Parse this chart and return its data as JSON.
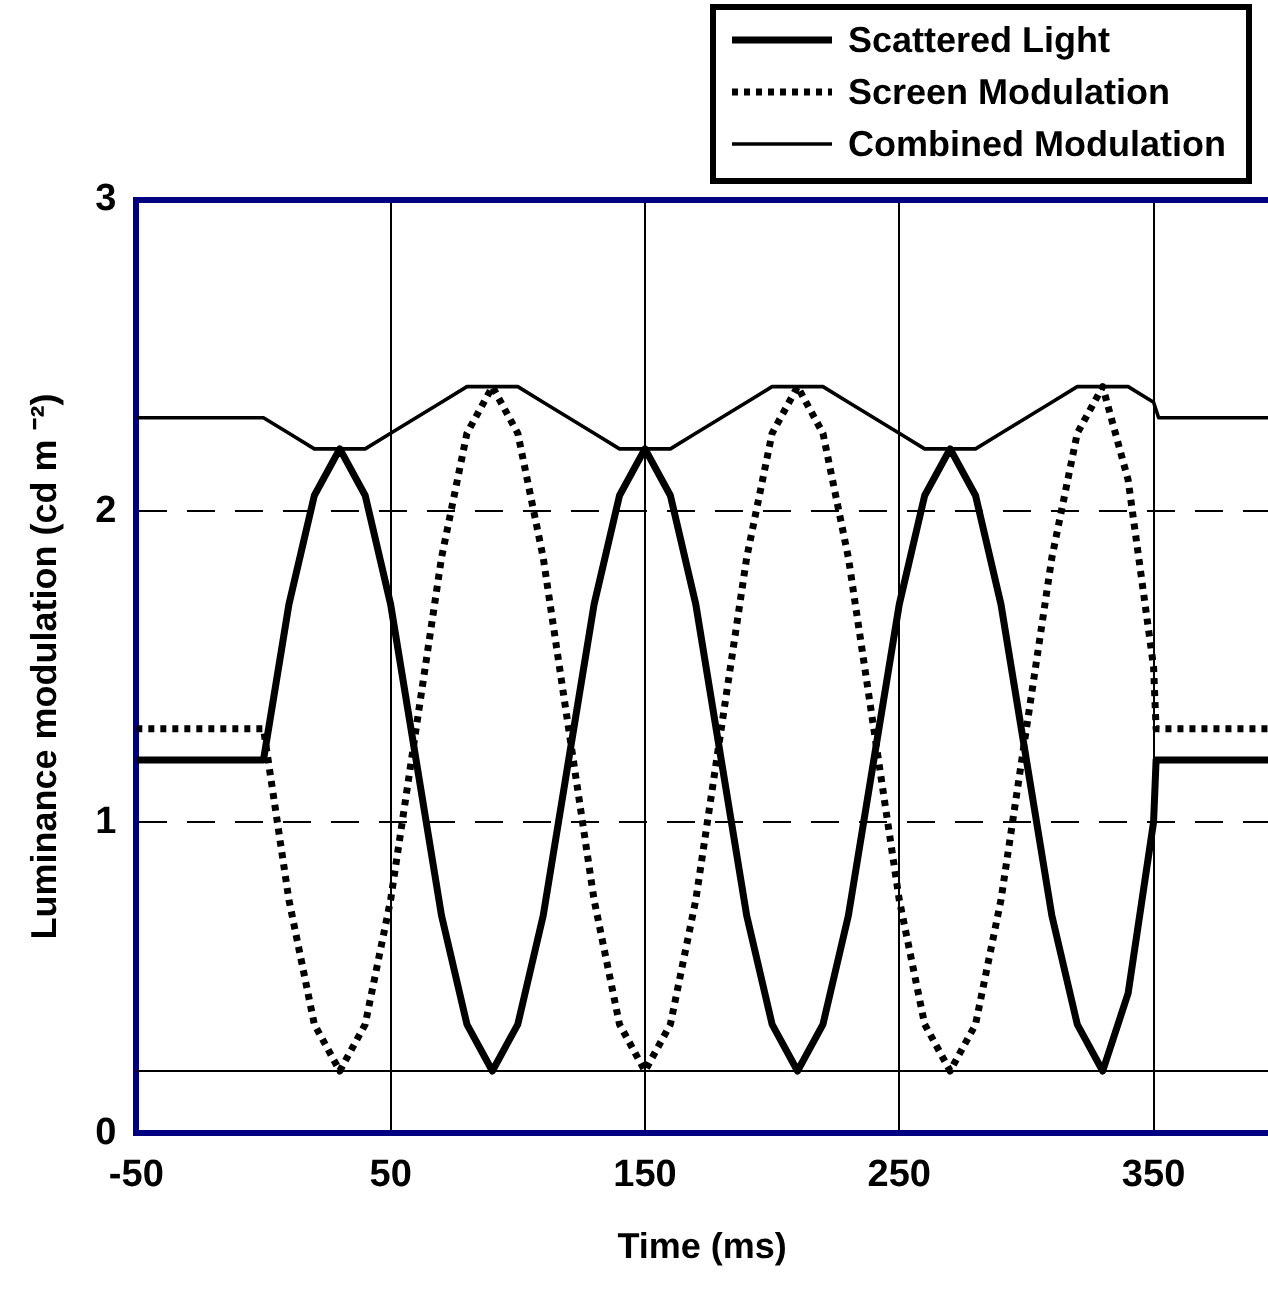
{
  "chart_data": {
    "type": "line",
    "xlabel": "Time (ms)",
    "ylabel": "Luminance modulation (cd m ⁻²)",
    "xlim": [
      -50,
      395
    ],
    "xticks": [
      -50,
      50,
      150,
      250,
      350
    ],
    "ylim": [
      0,
      3
    ],
    "yticks": [
      0,
      1,
      2,
      3
    ],
    "grid": true,
    "legend": "top right",
    "marker": "none",
    "ref_lines": [
      {
        "axis": "y",
        "value": 0.2
      }
    ],
    "series": [
      {
        "name": "Scattered Light",
        "color": "#000000",
        "line_style": "solid",
        "x": [
          -50,
          0,
          10,
          20,
          30,
          40,
          50,
          60,
          70,
          80,
          90,
          100,
          110,
          120,
          130,
          140,
          150,
          160,
          170,
          180,
          190,
          200,
          210,
          220,
          230,
          240,
          250,
          260,
          270,
          280,
          290,
          300,
          310,
          320,
          330,
          340,
          350,
          351,
          395
        ],
        "values": [
          1.2,
          1.2,
          1.7,
          2.05,
          2.2,
          2.05,
          1.7,
          1.2,
          0.7,
          0.35,
          0.2,
          0.35,
          0.7,
          1.2,
          1.7,
          2.05,
          2.2,
          2.05,
          1.7,
          1.2,
          0.7,
          0.35,
          0.2,
          0.35,
          0.7,
          1.2,
          1.7,
          2.05,
          2.2,
          2.05,
          1.7,
          1.2,
          0.7,
          0.35,
          0.2,
          0.45,
          1.0,
          1.2,
          1.2
        ]
      },
      {
        "name": "Screen Modulation",
        "color": "#000000",
        "line_style": "dotted",
        "x": [
          -50,
          0,
          10,
          20,
          30,
          40,
          50,
          60,
          70,
          80,
          90,
          100,
          110,
          120,
          130,
          140,
          150,
          160,
          170,
          180,
          190,
          200,
          210,
          220,
          230,
          240,
          250,
          260,
          270,
          280,
          290,
          300,
          310,
          320,
          330,
          340,
          350,
          351,
          395
        ],
        "values": [
          1.3,
          1.3,
          0.75,
          0.35,
          0.2,
          0.35,
          0.75,
          1.3,
          1.85,
          2.25,
          2.4,
          2.25,
          1.85,
          1.3,
          0.75,
          0.35,
          0.2,
          0.35,
          0.75,
          1.3,
          1.85,
          2.25,
          2.4,
          2.25,
          1.85,
          1.3,
          0.75,
          0.35,
          0.2,
          0.35,
          0.75,
          1.3,
          1.85,
          2.25,
          2.4,
          2.1,
          1.5,
          1.3,
          1.3
        ]
      },
      {
        "name": "Combined Modulation",
        "color": "#000000",
        "line_style": "solid",
        "x": [
          -50,
          0,
          10,
          20,
          30,
          40,
          50,
          60,
          70,
          80,
          90,
          100,
          110,
          120,
          130,
          140,
          150,
          160,
          170,
          180,
          190,
          200,
          210,
          220,
          230,
          240,
          250,
          260,
          270,
          280,
          290,
          300,
          310,
          320,
          330,
          340,
          350,
          352,
          395
        ],
        "values": [
          2.3,
          2.3,
          2.25,
          2.2,
          2.2,
          2.2,
          2.25,
          2.3,
          2.35,
          2.4,
          2.4,
          2.4,
          2.35,
          2.3,
          2.25,
          2.2,
          2.2,
          2.2,
          2.25,
          2.3,
          2.35,
          2.4,
          2.4,
          2.4,
          2.35,
          2.3,
          2.25,
          2.2,
          2.2,
          2.2,
          2.25,
          2.3,
          2.35,
          2.4,
          2.4,
          2.4,
          2.35,
          2.3,
          2.3
        ]
      }
    ]
  }
}
